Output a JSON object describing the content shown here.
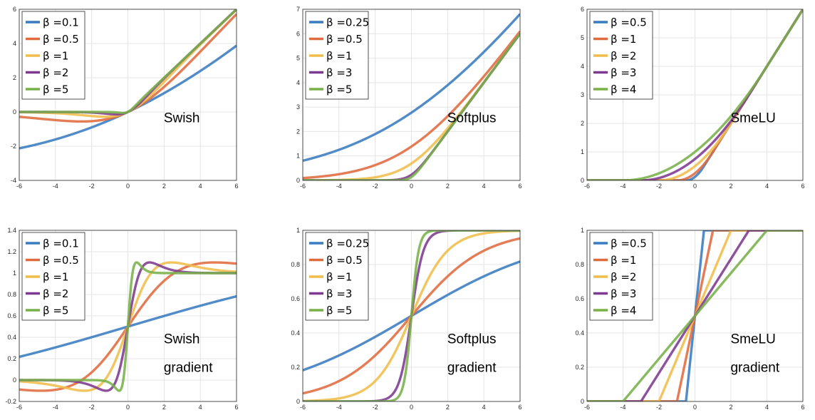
{
  "colors": [
    "#3a7cc0",
    "#e06b3f",
    "#f0bd4a",
    "#7e3a90",
    "#78b04a"
  ],
  "chart_data": [
    {
      "type": "line",
      "function": "swish",
      "annotation": [
        "Swish"
      ],
      "xlim": [
        -6,
        6
      ],
      "ylim": [
        -4,
        6
      ],
      "xticks": [
        "-6",
        "-4",
        "-2",
        "0",
        "2",
        "4",
        "6"
      ],
      "yticks": [
        "-4",
        "-2",
        "0",
        "2",
        "4",
        "6"
      ],
      "betas": [
        0.1,
        0.5,
        1,
        2,
        5
      ],
      "legend": [
        "β =0.1",
        "β =0.5",
        "β =1",
        "β =2",
        "β =5"
      ],
      "legend_position": "top-left"
    },
    {
      "type": "line",
      "function": "softplus",
      "annotation": [
        "Softplus"
      ],
      "xlim": [
        -6,
        6
      ],
      "ylim": [
        0,
        7
      ],
      "xticks": [
        "-6",
        "-4",
        "-2",
        "0",
        "2",
        "4",
        "6"
      ],
      "yticks": [
        "0",
        "1",
        "2",
        "3",
        "4",
        "5",
        "6",
        "7"
      ],
      "betas": [
        0.25,
        0.5,
        1,
        3,
        5
      ],
      "legend": [
        "β =0.25",
        "β =0.5",
        "β =1",
        "β =3",
        "β =5"
      ],
      "legend_position": "top-left"
    },
    {
      "type": "line",
      "function": "smelu",
      "annotation": [
        "SmeLU"
      ],
      "xlim": [
        -6,
        6
      ],
      "ylim": [
        0,
        6
      ],
      "xticks": [
        "-6",
        "-4",
        "-2",
        "0",
        "2",
        "4",
        "6"
      ],
      "yticks": [
        "0",
        "1",
        "2",
        "3",
        "4",
        "5",
        "6"
      ],
      "betas": [
        0.5,
        1,
        2,
        3,
        4
      ],
      "legend": [
        "β =0.5",
        "β =1",
        "β =2",
        "β =3",
        "β =4"
      ],
      "legend_position": "top-left"
    },
    {
      "type": "line",
      "function": "swish_gradient",
      "annotation": [
        "Swish",
        "gradient"
      ],
      "xlim": [
        -6,
        6
      ],
      "ylim": [
        -0.2,
        1.4
      ],
      "xticks": [
        "-6",
        "-4",
        "-2",
        "0",
        "2",
        "4",
        "6"
      ],
      "yticks": [
        "-0.2",
        "0",
        "0.2",
        "0.4",
        "0.6",
        "0.8",
        "1",
        "1.2",
        "1.4"
      ],
      "betas": [
        0.1,
        0.5,
        1,
        2,
        5
      ],
      "legend": [
        "β =0.1",
        "β =0.5",
        "β =1",
        "β =2",
        "β =5"
      ],
      "legend_position": "top-left"
    },
    {
      "type": "line",
      "function": "softplus_gradient",
      "annotation": [
        "Softplus",
        "gradient"
      ],
      "xlim": [
        -6,
        6
      ],
      "ylim": [
        0,
        1
      ],
      "xticks": [
        "-6",
        "-4",
        "-2",
        "0",
        "2",
        "4",
        "6"
      ],
      "yticks": [
        "0",
        "0.2",
        "0.4",
        "0.6",
        "0.8",
        "1"
      ],
      "betas": [
        0.25,
        0.5,
        1,
        3,
        5
      ],
      "legend": [
        "β =0.25",
        "β =0.5",
        "β =1",
        "β =3",
        "β =5"
      ],
      "legend_position": "top-left"
    },
    {
      "type": "line",
      "function": "smelu_gradient",
      "annotation": [
        "SmeLU",
        "gradient"
      ],
      "xlim": [
        -6,
        6
      ],
      "ylim": [
        0,
        1
      ],
      "xticks": [
        "-6",
        "-4",
        "-2",
        "0",
        "2",
        "4",
        "6"
      ],
      "yticks": [
        "0",
        "0.2",
        "0.4",
        "0.6",
        "0.8",
        "1"
      ],
      "betas": [
        0.5,
        1,
        2,
        3,
        4
      ],
      "legend": [
        "β =0.5",
        "β =1",
        "β =2",
        "β =3",
        "β =4"
      ],
      "legend_position": "top-left"
    }
  ]
}
